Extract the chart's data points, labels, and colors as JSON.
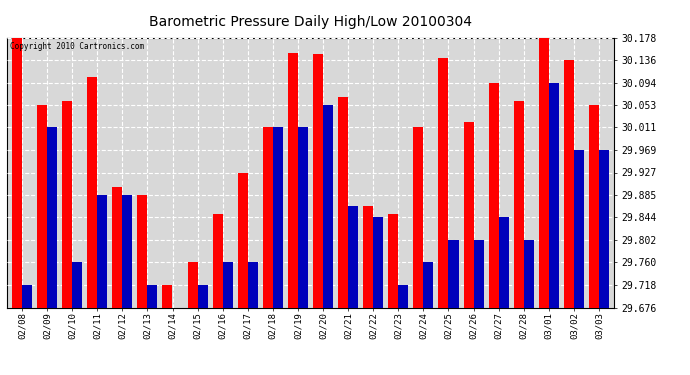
{
  "title": "Barometric Pressure Daily High/Low 20100304",
  "copyright": "Copyright 2010 Cartronics.com",
  "dates": [
    "02/08",
    "02/09",
    "02/10",
    "02/11",
    "02/12",
    "02/13",
    "02/14",
    "02/15",
    "02/16",
    "02/17",
    "02/18",
    "02/19",
    "02/20",
    "02/21",
    "02/22",
    "02/23",
    "02/24",
    "02/25",
    "02/26",
    "02/27",
    "02/28",
    "03/01",
    "03/02",
    "03/03"
  ],
  "highs": [
    30.178,
    30.053,
    30.06,
    30.105,
    29.9,
    29.885,
    29.718,
    29.76,
    29.85,
    29.927,
    30.011,
    30.15,
    30.148,
    30.067,
    29.865,
    29.85,
    30.011,
    30.14,
    30.02,
    30.094,
    30.06,
    30.19,
    30.136,
    30.053
  ],
  "lows": [
    29.718,
    30.011,
    29.76,
    29.885,
    29.885,
    29.718,
    29.676,
    29.718,
    29.76,
    29.76,
    30.011,
    30.011,
    30.053,
    29.865,
    29.844,
    29.718,
    29.76,
    29.802,
    29.802,
    29.844,
    29.802,
    30.094,
    29.969,
    29.969
  ],
  "ylim_min": 29.676,
  "ylim_max": 30.178,
  "yticks": [
    29.676,
    29.718,
    29.76,
    29.802,
    29.844,
    29.885,
    29.927,
    29.969,
    30.011,
    30.053,
    30.094,
    30.136,
    30.178
  ],
  "high_color": "#FF0000",
  "low_color": "#0000BB",
  "bg_color": "#FFFFFF",
  "plot_bg_color": "#D8D8D8",
  "grid_color": "#FFFFFF",
  "bar_width": 0.4
}
